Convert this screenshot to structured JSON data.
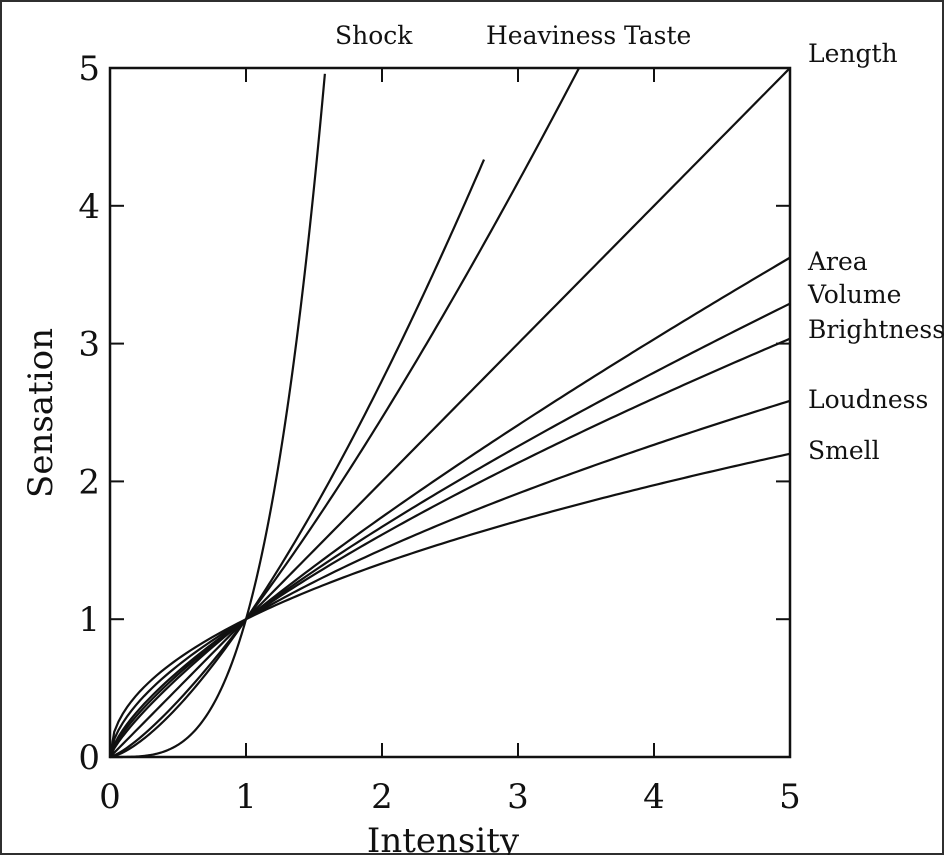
{
  "chart_data": {
    "type": "line",
    "title": "",
    "xlabel": "Intensity",
    "ylabel": "Sensation",
    "xlim": [
      0,
      5
    ],
    "ylim": [
      0,
      5
    ],
    "xticks": [
      "0",
      "1",
      "2",
      "3",
      "4",
      "5"
    ],
    "yticks": [
      "0",
      "1",
      "2",
      "3",
      "4",
      "5"
    ],
    "grid": false,
    "legend": "none",
    "line_color": "#111111",
    "series": [
      {
        "name": "Shock",
        "exponent": 3.5,
        "x": [
          0,
          0.25,
          0.5,
          0.75,
          1,
          1.25,
          1.5,
          1.58
        ],
        "y": [
          0.01,
          0.04,
          0.09,
          0.37,
          1,
          2.18,
          4.13,
          4.96
        ]
      },
      {
        "name": "Heaviness",
        "exponent": 1.45,
        "x": [
          0,
          0.5,
          1,
          1.5,
          2,
          2.5,
          2.75
        ],
        "y": [
          0,
          0.37,
          1,
          1.8,
          2.73,
          3.78,
          4.34
        ]
      },
      {
        "name": "Taste",
        "exponent": 1.3,
        "x": [
          0,
          0.5,
          1,
          2,
          3,
          3.4,
          3.8
        ],
        "y": [
          0,
          0.41,
          1,
          2.46,
          4.17,
          4.91,
          5.67
        ]
      },
      {
        "name": "Length",
        "exponent": 1.0,
        "x": [
          0,
          1,
          2,
          3,
          4,
          5
        ],
        "y": [
          0,
          1,
          2,
          3,
          4,
          5
        ]
      },
      {
        "name": "Area",
        "exponent": 0.8,
        "x": [
          0,
          0.5,
          1,
          2,
          3,
          4,
          5
        ],
        "y": [
          0,
          0.57,
          1,
          1.74,
          2.41,
          3.03,
          3.62
        ]
      },
      {
        "name": "Volume",
        "exponent": 0.74,
        "x": [
          0,
          0.5,
          1,
          2,
          3,
          4,
          5
        ],
        "y": [
          0,
          0.6,
          1,
          1.67,
          2.25,
          2.79,
          3.29
        ]
      },
      {
        "name": "Brightness",
        "exponent": 0.69,
        "x": [
          0,
          0.5,
          1,
          2,
          3,
          4,
          5
        ],
        "y": [
          0,
          0.62,
          1,
          1.61,
          2.13,
          2.6,
          3.04
        ]
      },
      {
        "name": "Loudness",
        "exponent": 0.59,
        "x": [
          0,
          0.5,
          1,
          2,
          3,
          4,
          5
        ],
        "y": [
          0,
          0.66,
          1,
          1.51,
          1.91,
          2.27,
          2.58
        ]
      },
      {
        "name": "Smell",
        "exponent": 0.49,
        "x": [
          0,
          0.5,
          1,
          2,
          3,
          4,
          5
        ],
        "y": [
          0,
          0.71,
          1,
          1.4,
          1.71,
          1.97,
          2.2
        ]
      }
    ]
  }
}
